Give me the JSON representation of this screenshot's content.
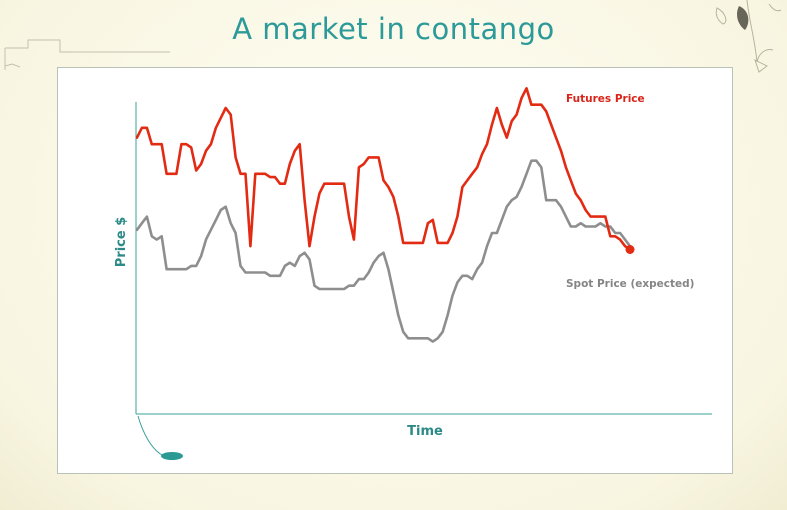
{
  "chart_data": {
    "type": "line",
    "title": "A market in contango",
    "xlabel": "Time",
    "ylabel": "Price $",
    "xlim": [
      0,
      100
    ],
    "ylim": [
      0,
      100
    ],
    "grid": false,
    "legend": "inline labels at top-right and right",
    "series": [
      {
        "name": "Futures Price",
        "color": "#e32a12",
        "x": [
          0,
          1,
          2,
          3,
          4,
          5,
          6,
          7,
          8,
          9,
          10,
          11,
          12,
          13,
          14,
          15,
          16,
          17,
          18,
          19,
          20,
          21,
          22,
          23,
          24,
          25,
          26,
          27,
          28,
          29,
          30,
          31,
          32,
          33,
          34,
          35,
          36,
          37,
          38,
          39,
          40,
          41,
          42,
          43,
          44,
          45,
          46,
          47,
          48,
          49,
          50,
          51,
          52,
          53,
          54,
          55,
          56,
          57,
          58,
          59,
          60,
          61,
          62,
          63,
          64,
          65,
          66,
          67,
          68,
          69,
          70,
          71,
          72,
          73,
          74,
          75,
          76,
          77,
          78,
          79,
          80,
          81,
          82,
          83,
          84,
          85,
          86,
          87,
          88,
          89,
          90,
          91,
          92,
          93,
          94,
          95,
          96,
          97,
          98,
          99,
          100
        ],
        "y": [
          84,
          87,
          87,
          82,
          82,
          82,
          73,
          73,
          73,
          82,
          82,
          81,
          74,
          76,
          80,
          82,
          87,
          90,
          93,
          91,
          78,
          73,
          73,
          51,
          73,
          73,
          73,
          72,
          72,
          70,
          70,
          76,
          80,
          82,
          65,
          51,
          60,
          67,
          70,
          70,
          70,
          70,
          70,
          60,
          53,
          75,
          76,
          78,
          78,
          78,
          71,
          69,
          66,
          60,
          52,
          52,
          52,
          52,
          52,
          58,
          59,
          52,
          52,
          52,
          55,
          60,
          69,
          71,
          73,
          75,
          79,
          82,
          88,
          93,
          88,
          84,
          89,
          91,
          96,
          99,
          94,
          94,
          94,
          92,
          88,
          84,
          80,
          75,
          71,
          67,
          65,
          62,
          60,
          60,
          60,
          60,
          54,
          54,
          53,
          51,
          50
        ]
      },
      {
        "name": "Spot Price (expected)",
        "color": "#8e8e8e",
        "x": [
          0,
          1,
          2,
          3,
          4,
          5,
          6,
          7,
          8,
          9,
          10,
          11,
          12,
          13,
          14,
          15,
          16,
          17,
          18,
          19,
          20,
          21,
          22,
          23,
          24,
          25,
          26,
          27,
          28,
          29,
          30,
          31,
          32,
          33,
          34,
          35,
          36,
          37,
          38,
          39,
          40,
          41,
          42,
          43,
          44,
          45,
          46,
          47,
          48,
          49,
          50,
          51,
          52,
          53,
          54,
          55,
          56,
          57,
          58,
          59,
          60,
          61,
          62,
          63,
          64,
          65,
          66,
          67,
          68,
          69,
          70,
          71,
          72,
          73,
          74,
          75,
          76,
          77,
          78,
          79,
          80,
          81,
          82,
          83,
          84,
          85,
          86,
          87,
          88,
          89,
          90,
          91,
          92,
          93,
          94,
          95,
          96,
          97,
          98,
          99,
          100
        ],
        "y": [
          56,
          58,
          60,
          54,
          53,
          54,
          44,
          44,
          44,
          44,
          44,
          45,
          45,
          48,
          53,
          56,
          59,
          62,
          63,
          58,
          55,
          45,
          43,
          43,
          43,
          43,
          43,
          42,
          42,
          42,
          45,
          46,
          45,
          48,
          49,
          47,
          39,
          38,
          38,
          38,
          38,
          38,
          38,
          39,
          39,
          41,
          41,
          43,
          46,
          48,
          49,
          44,
          37,
          30,
          25,
          23,
          23,
          23,
          23,
          23,
          22,
          23,
          25,
          30,
          36,
          40,
          42,
          42,
          41,
          44,
          46,
          51,
          55,
          55,
          59,
          63,
          65,
          66,
          69,
          73,
          77,
          77,
          75,
          65,
          65,
          65,
          63,
          60,
          57,
          57,
          58,
          57,
          57,
          57,
          58,
          57,
          57,
          55,
          55,
          53,
          51
        ]
      }
    ],
    "annotations": [
      "Futures Price",
      "Spot Price (expected)"
    ]
  }
}
